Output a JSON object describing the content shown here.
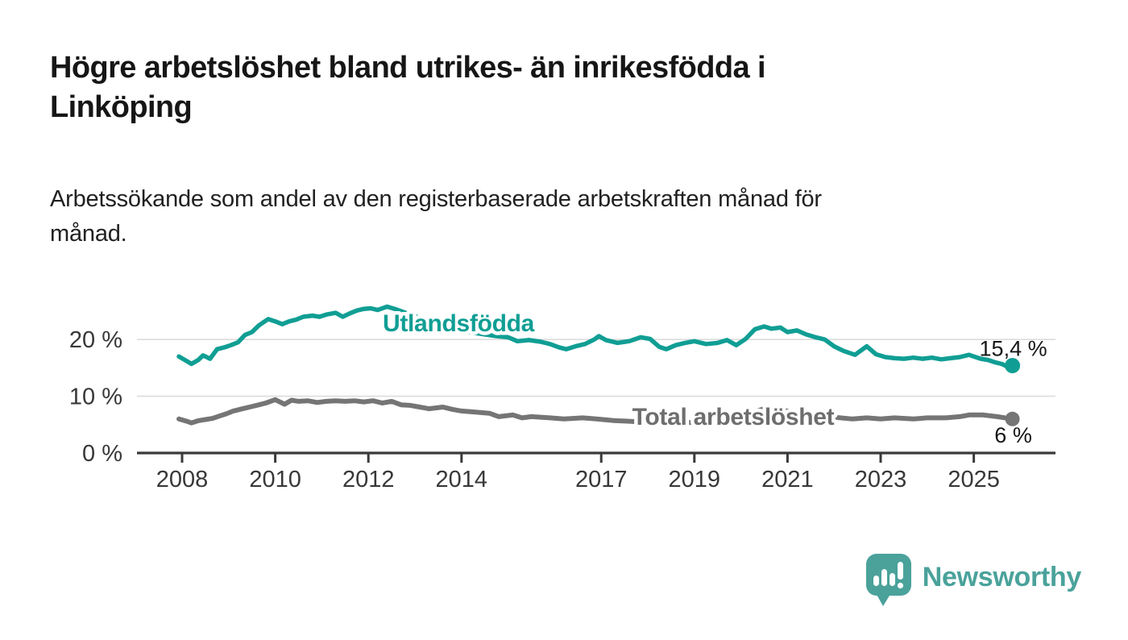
{
  "header": {
    "title_lines": {
      "0": "Högre arbetslöshet bland utrikes- än inrikesfödda i",
      "1": "Linköping"
    },
    "subtitle_lines": {
      "0": "Arbetssökande som andel av den registerbaserade arbetskraften månad för",
      "1": "månad."
    }
  },
  "branding": {
    "logo_text": "Newsworthy",
    "logo_color": "#4aa29b",
    "logo_icon": "speech-bubble-with-bar-chart-and-exclamation"
  },
  "chart_data": {
    "type": "line",
    "title": "Högre arbetslöshet bland utrikes- än inrikesfödda i Linköping",
    "subtitle": "Arbetssökande som andel av den registerbaserade arbetskraften månad för månad.",
    "x_unit": "year (monthly data)",
    "y_unit": "percent",
    "x_range": [
      2007.9,
      2025.9
    ],
    "ylim": [
      0,
      27
    ],
    "grid": "horizontal",
    "legend_position": "inline-labels",
    "axis_color": "#3a3a3a",
    "grid_color": "#dcdcdc",
    "tick_label_color": "#383838",
    "value_label_color": "#161616",
    "x_ticks": [
      {
        "value": 2008,
        "label": "2008"
      },
      {
        "value": 2010,
        "label": "2010"
      },
      {
        "value": 2012,
        "label": "2012"
      },
      {
        "value": 2014,
        "label": "2014"
      },
      {
        "value": 2017,
        "label": "2017"
      },
      {
        "value": 2019,
        "label": "2019"
      },
      {
        "value": 2021,
        "label": "2021"
      },
      {
        "value": 2023,
        "label": "2023"
      },
      {
        "value": 2025,
        "label": "2025"
      }
    ],
    "y_ticks": [
      {
        "value": 0,
        "label": "0 %"
      },
      {
        "value": 10,
        "label": "10 %"
      },
      {
        "value": 20,
        "label": "20 %"
      }
    ],
    "series": [
      {
        "name": "Utlandsfödda",
        "color": "#109e94",
        "label_color": "#109e94",
        "end_label": "15,4 %",
        "end_label_position": "above",
        "points": [
          [
            2007.93,
            17.0
          ],
          [
            2008.1,
            16.2
          ],
          [
            2008.2,
            15.7
          ],
          [
            2008.35,
            16.4
          ],
          [
            2008.45,
            17.2
          ],
          [
            2008.6,
            16.6
          ],
          [
            2008.75,
            18.3
          ],
          [
            2008.9,
            18.6
          ],
          [
            2009.05,
            19.0
          ],
          [
            2009.2,
            19.5
          ],
          [
            2009.35,
            20.8
          ],
          [
            2009.5,
            21.3
          ],
          [
            2009.65,
            22.5
          ],
          [
            2009.85,
            23.6
          ],
          [
            2010.0,
            23.2
          ],
          [
            2010.15,
            22.7
          ],
          [
            2010.3,
            23.2
          ],
          [
            2010.45,
            23.5
          ],
          [
            2010.6,
            24.0
          ],
          [
            2010.8,
            24.2
          ],
          [
            2010.95,
            24.0
          ],
          [
            2011.1,
            24.4
          ],
          [
            2011.3,
            24.7
          ],
          [
            2011.45,
            24.0
          ],
          [
            2011.6,
            24.6
          ],
          [
            2011.75,
            25.1
          ],
          [
            2011.9,
            25.4
          ],
          [
            2012.05,
            25.5
          ],
          [
            2012.2,
            25.2
          ],
          [
            2012.4,
            25.8
          ],
          [
            2012.6,
            25.3
          ],
          [
            2012.8,
            24.7
          ],
          [
            2013.0,
            24.1
          ],
          [
            2013.25,
            23.4
          ],
          [
            2013.5,
            22.7
          ],
          [
            2013.75,
            22.1
          ],
          [
            2014.0,
            21.6
          ],
          [
            2014.25,
            21.2
          ],
          [
            2014.5,
            20.9
          ],
          [
            2014.75,
            20.6
          ],
          [
            2015.0,
            20.4
          ],
          [
            2015.2,
            19.7
          ],
          [
            2015.45,
            19.9
          ],
          [
            2015.7,
            19.6
          ],
          [
            2015.9,
            19.2
          ],
          [
            2016.1,
            18.6
          ],
          [
            2016.25,
            18.3
          ],
          [
            2016.45,
            18.8
          ],
          [
            2016.65,
            19.2
          ],
          [
            2016.85,
            20.0
          ],
          [
            2016.95,
            20.6
          ],
          [
            2017.1,
            19.9
          ],
          [
            2017.35,
            19.4
          ],
          [
            2017.6,
            19.7
          ],
          [
            2017.85,
            20.4
          ],
          [
            2018.05,
            20.1
          ],
          [
            2018.25,
            18.7
          ],
          [
            2018.4,
            18.3
          ],
          [
            2018.6,
            19.0
          ],
          [
            2018.8,
            19.4
          ],
          [
            2019.0,
            19.7
          ],
          [
            2019.25,
            19.2
          ],
          [
            2019.5,
            19.4
          ],
          [
            2019.7,
            19.9
          ],
          [
            2019.9,
            19.0
          ],
          [
            2020.1,
            20.1
          ],
          [
            2020.3,
            21.8
          ],
          [
            2020.5,
            22.3
          ],
          [
            2020.65,
            21.9
          ],
          [
            2020.85,
            22.1
          ],
          [
            2021.0,
            21.3
          ],
          [
            2021.2,
            21.6
          ],
          [
            2021.4,
            20.9
          ],
          [
            2021.6,
            20.4
          ],
          [
            2021.8,
            20.0
          ],
          [
            2022.0,
            18.8
          ],
          [
            2022.2,
            18.0
          ],
          [
            2022.45,
            17.3
          ],
          [
            2022.7,
            18.8
          ],
          [
            2022.9,
            17.4
          ],
          [
            2023.1,
            16.9
          ],
          [
            2023.3,
            16.7
          ],
          [
            2023.5,
            16.6
          ],
          [
            2023.7,
            16.8
          ],
          [
            2023.9,
            16.6
          ],
          [
            2024.1,
            16.8
          ],
          [
            2024.3,
            16.5
          ],
          [
            2024.5,
            16.7
          ],
          [
            2024.7,
            16.9
          ],
          [
            2024.9,
            17.3
          ],
          [
            2025.0,
            17.0
          ],
          [
            2025.15,
            16.6
          ],
          [
            2025.3,
            16.4
          ],
          [
            2025.45,
            16.0
          ],
          [
            2025.6,
            15.7
          ],
          [
            2025.7,
            15.3
          ],
          [
            2025.83,
            15.4
          ]
        ]
      },
      {
        "name": "Total arbetslöshet",
        "color": "#757575",
        "label_color": "#6e6e6e",
        "end_label": "6 %",
        "end_label_position": "below",
        "points": [
          [
            2007.93,
            6.0
          ],
          [
            2008.1,
            5.6
          ],
          [
            2008.2,
            5.3
          ],
          [
            2008.35,
            5.7
          ],
          [
            2008.5,
            5.9
          ],
          [
            2008.65,
            6.1
          ],
          [
            2008.8,
            6.5
          ],
          [
            2008.95,
            6.9
          ],
          [
            2009.1,
            7.4
          ],
          [
            2009.3,
            7.8
          ],
          [
            2009.45,
            8.1
          ],
          [
            2009.65,
            8.5
          ],
          [
            2009.8,
            8.8
          ],
          [
            2010.0,
            9.4
          ],
          [
            2010.2,
            8.6
          ],
          [
            2010.35,
            9.3
          ],
          [
            2010.5,
            9.1
          ],
          [
            2010.7,
            9.2
          ],
          [
            2010.9,
            8.9
          ],
          [
            2011.1,
            9.1
          ],
          [
            2011.3,
            9.2
          ],
          [
            2011.5,
            9.1
          ],
          [
            2011.7,
            9.2
          ],
          [
            2011.9,
            9.0
          ],
          [
            2012.1,
            9.2
          ],
          [
            2012.3,
            8.8
          ],
          [
            2012.5,
            9.1
          ],
          [
            2012.7,
            8.5
          ],
          [
            2012.9,
            8.4
          ],
          [
            2013.1,
            8.1
          ],
          [
            2013.3,
            7.8
          ],
          [
            2013.6,
            8.1
          ],
          [
            2013.8,
            7.7
          ],
          [
            2014.0,
            7.4
          ],
          [
            2014.3,
            7.2
          ],
          [
            2014.6,
            7.0
          ],
          [
            2014.8,
            6.4
          ],
          [
            2015.1,
            6.7
          ],
          [
            2015.3,
            6.2
          ],
          [
            2015.5,
            6.4
          ],
          [
            2015.7,
            6.3
          ],
          [
            2015.9,
            6.2
          ],
          [
            2016.2,
            6.0
          ],
          [
            2016.6,
            6.2
          ],
          [
            2016.9,
            6.0
          ],
          [
            2017.3,
            5.7
          ],
          [
            2017.6,
            5.6
          ],
          [
            2018.0,
            5.4
          ],
          [
            2018.5,
            5.3
          ],
          [
            2019.0,
            5.4
          ],
          [
            2019.5,
            5.6
          ],
          [
            2019.9,
            5.8
          ],
          [
            2020.3,
            7.3
          ],
          [
            2020.5,
            7.8
          ],
          [
            2021.0,
            7.4
          ],
          [
            2021.5,
            6.8
          ],
          [
            2022.0,
            6.3
          ],
          [
            2022.4,
            6.0
          ],
          [
            2022.7,
            6.2
          ],
          [
            2023.0,
            6.0
          ],
          [
            2023.3,
            6.2
          ],
          [
            2023.7,
            6.0
          ],
          [
            2024.0,
            6.2
          ],
          [
            2024.4,
            6.2
          ],
          [
            2024.7,
            6.4
          ],
          [
            2024.9,
            6.7
          ],
          [
            2025.2,
            6.7
          ],
          [
            2025.5,
            6.4
          ],
          [
            2025.83,
            6.0
          ]
        ]
      }
    ]
  }
}
